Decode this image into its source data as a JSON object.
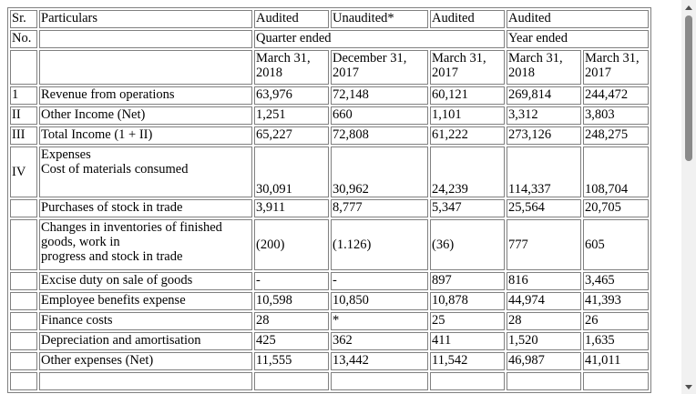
{
  "header": {
    "sr": "Sr.",
    "no": "No.",
    "particulars": "Particulars",
    "status": [
      "Audited",
      "Unaudited*",
      "Audited",
      "Audited"
    ],
    "quarter_ended": "Quarter ended",
    "year_ended": "Year ended",
    "dates": [
      [
        "March 31,",
        "2018"
      ],
      [
        "December 31,",
        "2017"
      ],
      [
        "March 31,",
        "2017"
      ],
      [
        "March 31,",
        "2018"
      ],
      [
        "March 31,",
        "2017"
      ]
    ]
  },
  "rows": [
    {
      "sr": "1",
      "label": "Revenue from operations",
      "values": [
        "63,976",
        "72,148",
        "60,121",
        "269,814",
        "244,472"
      ]
    },
    {
      "sr": "II",
      "label": "Other Income (Net)",
      "values": [
        "1,251",
        "660",
        "1,101",
        "3,312",
        "3,803"
      ]
    },
    {
      "sr": "III",
      "label": "Total Income (1 + II)",
      "values": [
        "65,227",
        "72,808",
        "61,222",
        "273,126",
        "248,275"
      ]
    }
  ],
  "expenses": {
    "sr": "IV",
    "heading": "Expenses",
    "first_label": "Cost of materials consumed",
    "first_values": [
      "30,091",
      "30,962",
      "24,239",
      "114,337",
      "108,704"
    ]
  },
  "expense_rows": [
    {
      "label": "Purchases of stock in trade",
      "values": [
        "3,911",
        "8,777",
        "5,347",
        "25,564",
        "20,705"
      ]
    },
    {
      "label_lines": [
        "Changes in inventories of finished",
        "goods, work in",
        "progress and stock in trade"
      ],
      "values": [
        "(200)",
        "(1.126)",
        "(36)",
        "777",
        "605"
      ]
    },
    {
      "label": "Excise duty on sale of goods",
      "values": [
        "-",
        "-",
        "897",
        "816",
        "3,465"
      ]
    },
    {
      "label": "Employee benefits expense",
      "values": [
        "10,598",
        "10,850",
        "10,878",
        "44,974",
        "41,393"
      ]
    },
    {
      "label": "Finance costs",
      "values": [
        "28",
        "*",
        "25",
        "28",
        "26"
      ]
    },
    {
      "label": "Depreciation and amortisation",
      "values": [
        "425",
        "362",
        "411",
        "1,520",
        "1,635"
      ]
    },
    {
      "label": "Other expenses (Net)",
      "values": [
        "11,555",
        "13,442",
        "11,542",
        "46,987",
        "41,011"
      ]
    }
  ]
}
